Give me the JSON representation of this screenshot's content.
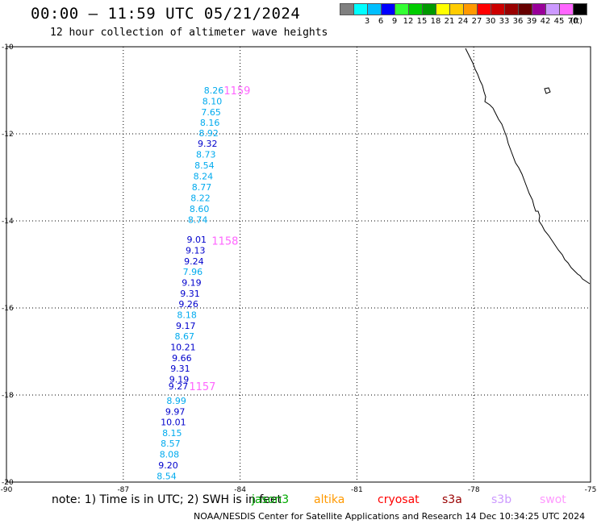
{
  "header": {
    "title": "00:00 – 11:59 UTC 05/21/2024",
    "subtitle": "12 hour collection of altimeter wave heights"
  },
  "legend": {
    "unit": "(ft)",
    "bins": [
      {
        "label": "",
        "color": "#808080"
      },
      {
        "label": "3",
        "color": "#00ffff"
      },
      {
        "label": "6",
        "color": "#00bfff"
      },
      {
        "label": "9",
        "color": "#0000ff"
      },
      {
        "label": "12",
        "color": "#33ff33"
      },
      {
        "label": "15",
        "color": "#00cc00"
      },
      {
        "label": "18",
        "color": "#009900"
      },
      {
        "label": "21",
        "color": "#ffff00"
      },
      {
        "label": "24",
        "color": "#ffcc00"
      },
      {
        "label": "27",
        "color": "#ff9900"
      },
      {
        "label": "30",
        "color": "#ff0000"
      },
      {
        "label": "33",
        "color": "#cc0000"
      },
      {
        "label": "36",
        "color": "#990000"
      },
      {
        "label": "39",
        "color": "#660000"
      },
      {
        "label": "42",
        "color": "#990099"
      },
      {
        "label": "45",
        "color": "#cc99ff"
      },
      {
        "label": "70",
        "color": "#ff66ff"
      },
      {
        "label": "",
        "color": "#000000"
      }
    ]
  },
  "map": {
    "lon_range": [
      -90,
      -75
    ],
    "lat_range": [
      -20,
      -10
    ],
    "lon_ticks": [
      "-90",
      "-87",
      "-84",
      "-81",
      "-78",
      "-75"
    ],
    "lat_ticks": [
      "-10",
      "-12",
      "-14",
      "-16",
      "-18",
      "-20"
    ],
    "track_colors": {
      "cyan": "#00aaee",
      "blue": "#0000cc"
    },
    "hour_color": "#ff66ff",
    "hour_labels": [
      {
        "text": "1159",
        "lon": -84.42,
        "lat": -11.0
      },
      {
        "text": "1158",
        "lon": -84.73,
        "lat": -14.45
      },
      {
        "text": "1157",
        "lon": -85.31,
        "lat": -17.8
      }
    ],
    "observations": [
      {
        "text": "8.26",
        "lon": -84.93,
        "lat": -11.0,
        "c": "cyan"
      },
      {
        "text": "8.10",
        "lon": -84.97,
        "lat": -11.25,
        "c": "cyan"
      },
      {
        "text": "7.65",
        "lon": -85.0,
        "lat": -11.5,
        "c": "cyan"
      },
      {
        "text": "8.16",
        "lon": -85.03,
        "lat": -11.74,
        "c": "cyan"
      },
      {
        "text": "8.92",
        "lon": -85.06,
        "lat": -11.98,
        "c": "cyan"
      },
      {
        "text": "9.32",
        "lon": -85.09,
        "lat": -12.22,
        "c": "blue"
      },
      {
        "text": "8.73",
        "lon": -85.13,
        "lat": -12.47,
        "c": "cyan"
      },
      {
        "text": "8.54",
        "lon": -85.17,
        "lat": -12.72,
        "c": "cyan"
      },
      {
        "text": "8.24",
        "lon": -85.2,
        "lat": -12.97,
        "c": "cyan"
      },
      {
        "text": "8.77",
        "lon": -85.24,
        "lat": -13.22,
        "c": "cyan"
      },
      {
        "text": "8.22",
        "lon": -85.27,
        "lat": -13.47,
        "c": "cyan"
      },
      {
        "text": "8.60",
        "lon": -85.3,
        "lat": -13.72,
        "c": "cyan"
      },
      {
        "text": "8.74",
        "lon": -85.34,
        "lat": -13.97,
        "c": "cyan"
      },
      {
        "text": "9.01",
        "lon": -85.37,
        "lat": -14.43,
        "c": "blue"
      },
      {
        "text": "9.13",
        "lon": -85.4,
        "lat": -14.68,
        "c": "blue"
      },
      {
        "text": "9.24",
        "lon": -85.44,
        "lat": -14.93,
        "c": "blue"
      },
      {
        "text": "7.96",
        "lon": -85.47,
        "lat": -15.17,
        "c": "cyan"
      },
      {
        "text": "9.19",
        "lon": -85.5,
        "lat": -15.42,
        "c": "blue"
      },
      {
        "text": "9.31",
        "lon": -85.54,
        "lat": -15.67,
        "c": "blue"
      },
      {
        "text": "9.26",
        "lon": -85.58,
        "lat": -15.91,
        "c": "blue"
      },
      {
        "text": "8.18",
        "lon": -85.62,
        "lat": -16.16,
        "c": "cyan"
      },
      {
        "text": "9.17",
        "lon": -85.65,
        "lat": -16.41,
        "c": "blue"
      },
      {
        "text": "8.67",
        "lon": -85.68,
        "lat": -16.65,
        "c": "cyan"
      },
      {
        "text": "10.21",
        "lon": -85.79,
        "lat": -16.9,
        "c": "blue"
      },
      {
        "text": "9.66",
        "lon": -85.75,
        "lat": -17.15,
        "c": "blue"
      },
      {
        "text": "9.31",
        "lon": -85.79,
        "lat": -17.39,
        "c": "blue"
      },
      {
        "text": "9.19",
        "lon": -85.82,
        "lat": -17.64,
        "c": "blue"
      },
      {
        "text": "9.27",
        "lon": -85.84,
        "lat": -17.8,
        "c": "blue"
      },
      {
        "text": "8.99",
        "lon": -85.89,
        "lat": -18.13,
        "c": "cyan"
      },
      {
        "text": "9.97",
        "lon": -85.92,
        "lat": -18.38,
        "c": "blue"
      },
      {
        "text": "10.01",
        "lon": -86.04,
        "lat": -18.62,
        "c": "blue"
      },
      {
        "text": "8.15",
        "lon": -86.0,
        "lat": -18.87,
        "c": "cyan"
      },
      {
        "text": "8.57",
        "lon": -86.04,
        "lat": -19.11,
        "c": "cyan"
      },
      {
        "text": "8.08",
        "lon": -86.07,
        "lat": -19.36,
        "c": "cyan"
      },
      {
        "text": "9.20",
        "lon": -86.1,
        "lat": -19.61,
        "c": "blue"
      },
      {
        "text": "8.54",
        "lon": -86.14,
        "lat": -19.86,
        "c": "cyan"
      }
    ]
  },
  "footer": {
    "note": "note: 1) Time is in UTC; 2) SWH is in feet",
    "satellites": [
      {
        "name": "jason3",
        "color": "#00aa00"
      },
      {
        "name": "altika",
        "color": "#ff9900"
      },
      {
        "name": "cryosat",
        "color": "#ff0000"
      },
      {
        "name": "s3a",
        "color": "#990000"
      },
      {
        "name": "s3b",
        "color": "#cc99ff"
      },
      {
        "name": "swot",
        "color": "#ff99ff"
      }
    ],
    "credit": "NOAA/NESDIS Center for Satellite Applications and Research    14 Dec 10:34:25 UTC 2024"
  }
}
